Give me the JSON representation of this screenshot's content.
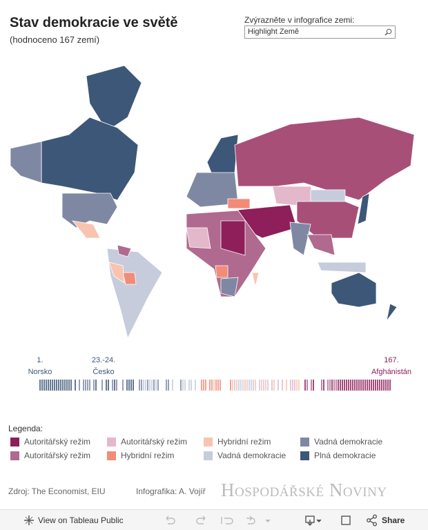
{
  "header": {
    "title": "Stav demokracie ve světě",
    "subtitle": "(hodnoceno 167 zemí)"
  },
  "search": {
    "label": "Zvýrazněte v infografice zemi:",
    "placeholder": "Highlight Země"
  },
  "rank_strip": {
    "first": {
      "rank": "1.",
      "country": "Norsko"
    },
    "middle": {
      "rank": "23.-24.",
      "country": "Česko"
    },
    "last": {
      "rank": "167.",
      "country": "Afghánistán"
    }
  },
  "legend": {
    "title": "Legenda:",
    "items": [
      {
        "label": "Autoritářský režim",
        "color": "#8e1f5a"
      },
      {
        "label": "Autoritářský režim",
        "color": "#e3b8cb"
      },
      {
        "label": "Hybridní režim",
        "color": "#f8c4b0"
      },
      {
        "label": "Vadná demokracie",
        "color": "#7f88a3"
      },
      {
        "label": "Autoritářský režim",
        "color": "#b06a8f"
      },
      {
        "label": "Hybridní režim",
        "color": "#f28b78"
      },
      {
        "label": "Vadná demokracie",
        "color": "#c6ccdc"
      },
      {
        "label": "Plná demokracie",
        "color": "#3d5778"
      }
    ]
  },
  "footer": {
    "source": "Zdroj: The Economist, EIU",
    "credit": "Infografika: A. Vojíř",
    "logo": "Hospodářské Noviny"
  },
  "toolbar": {
    "view": "View on Tableau Public",
    "share": "Share"
  }
}
